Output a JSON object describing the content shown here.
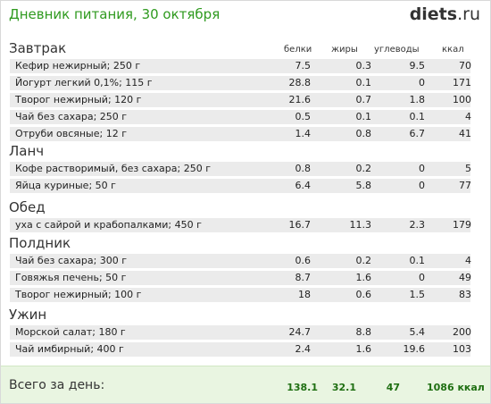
{
  "title": "Дневник питания, 30 октября",
  "logo": {
    "main": "diets",
    "suffix": ".ru"
  },
  "columns": {
    "protein": "белки",
    "fat": "жиры",
    "carbs": "углеводы",
    "kcal": "ккал"
  },
  "meals": [
    {
      "name": "Завтрак",
      "items": [
        {
          "name": "Кефир нежирный; 250 г",
          "protein": "7.5",
          "fat": "0.3",
          "carbs": "9.5",
          "kcal": "70"
        },
        {
          "name": "Йогурт легкий 0,1%; 115 г",
          "protein": "28.8",
          "fat": "0.1",
          "carbs": "0",
          "kcal": "171"
        },
        {
          "name": "Творог нежирный; 120 г",
          "protein": "21.6",
          "fat": "0.7",
          "carbs": "1.8",
          "kcal": "100"
        },
        {
          "name": "Чай без сахара; 250 г",
          "protein": "0.5",
          "fat": "0.1",
          "carbs": "0.1",
          "kcal": "4"
        },
        {
          "name": "Отруби овсяные; 12 г",
          "protein": "1.4",
          "fat": "0.8",
          "carbs": "6.7",
          "kcal": "41"
        }
      ]
    },
    {
      "name": "Ланч",
      "items": [
        {
          "name": "Кофе растворимый, без сахара; 250 г",
          "protein": "0.8",
          "fat": "0.2",
          "carbs": "0",
          "kcal": "5"
        },
        {
          "name": "Яйца куриные; 50 г",
          "protein": "6.4",
          "fat": "5.8",
          "carbs": "0",
          "kcal": "77"
        }
      ]
    },
    {
      "name": "Обед",
      "items": [
        {
          "name": "уха с сайрой и крабопалками; 450 г",
          "protein": "16.7",
          "fat": "11.3",
          "carbs": "2.3",
          "kcal": "179"
        }
      ]
    },
    {
      "name": "Полдник",
      "items": [
        {
          "name": "Чай без сахара; 300 г",
          "protein": "0.6",
          "fat": "0.2",
          "carbs": "0.1",
          "kcal": "4"
        },
        {
          "name": "Говяжья печень; 50 г",
          "protein": "8.7",
          "fat": "1.6",
          "carbs": "0",
          "kcal": "49"
        },
        {
          "name": "Творог нежирный; 100 г",
          "protein": "18",
          "fat": "0.6",
          "carbs": "1.5",
          "kcal": "83"
        }
      ]
    },
    {
      "name": "Ужин",
      "items": [
        {
          "name": "Морской салат; 180 г",
          "protein": "24.7",
          "fat": "8.8",
          "carbs": "5.4",
          "kcal": "200"
        },
        {
          "name": "Чай имбирный; 400 г",
          "protein": "2.4",
          "fat": "1.6",
          "carbs": "19.6",
          "kcal": "103"
        }
      ]
    }
  ],
  "totals": {
    "label": "Всего за день:",
    "protein": "138.1",
    "fat": "32.1",
    "carbs": "47",
    "kcal": "1086 ккал"
  },
  "colors": {
    "title": "#2f9a1f",
    "row_bg": "#ebebeb",
    "footer_bg": "#e9f5e1",
    "totals": "#1f6f12"
  }
}
